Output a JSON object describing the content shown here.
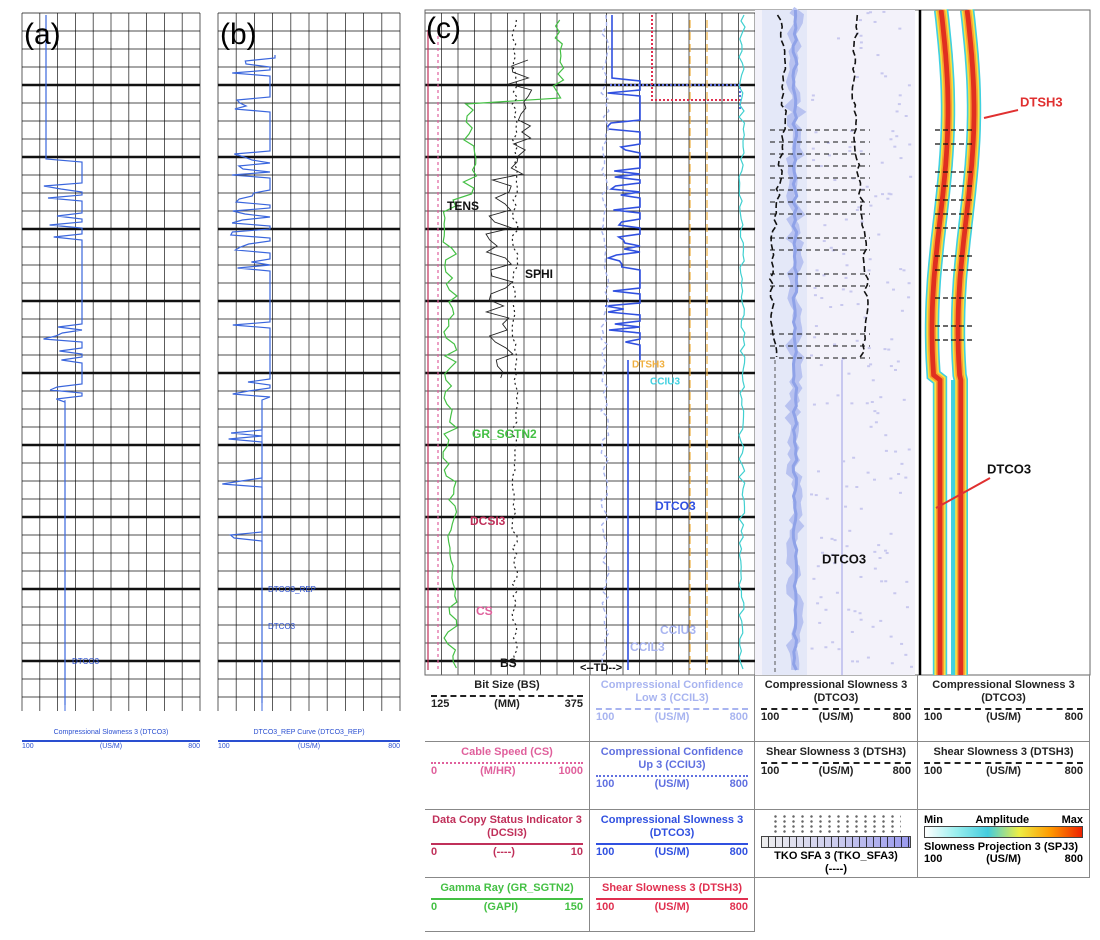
{
  "panels": [
    {
      "label": "(a)",
      "annotations": [
        "DTCO3"
      ],
      "footer": {
        "title": "Compressional Slowness 3 (DTCO3)",
        "min": 100,
        "unit": "(US/M)",
        "max": 800
      }
    },
    {
      "label": "(b)",
      "annotations": [
        "DTCO3_REP",
        "DTCO3"
      ],
      "footer": {
        "title": "DTCO3_REP Curve (DTCO3_REP)",
        "min": 100,
        "unit": "(US/M)",
        "max": 800
      }
    },
    {
      "label": "(c)",
      "annotations": [
        "TENS",
        "SPHI",
        "GR_SGTN2",
        "DCSI3",
        "CS",
        "BS",
        "<--TD-->",
        "DTSH3",
        "CCIU3",
        "DTCO3",
        "CCIU3",
        "CCIL3",
        "DTCO3",
        "DTSH3",
        "DTCO3"
      ],
      "legend": [
        [
          {
            "title": "Bit Size (BS)",
            "min": 125,
            "unit": "(MM)",
            "max": 375,
            "color": "#222222",
            "style": "dashed"
          },
          {
            "title": "Cable Speed (CS)",
            "min": 0,
            "unit": "(M/HR)",
            "max": 1000,
            "color": "#e0609c",
            "style": "dotted"
          },
          {
            "title": "Data Copy Status Indicator 3 (DCSI3)",
            "min": 0,
            "unit": "(----)",
            "max": 10,
            "color": "#c0305a",
            "style": "solid"
          },
          {
            "title": "Gamma Ray (GR_SGTN2)",
            "min": 0,
            "unit": "(GAPI)",
            "max": 150,
            "color": "#44c044",
            "style": "solid"
          }
        ],
        [
          {
            "title": "Compressional Confidence Low 3 (CCIL3)",
            "min": 100,
            "unit": "(US/M)",
            "max": 800,
            "color": "#a8b4f0",
            "style": "dashed"
          },
          {
            "title": "Compressional Confidence Up 3 (CCIU3)",
            "min": 100,
            "unit": "(US/M)",
            "max": 800,
            "color": "#6070e0",
            "style": "dotted"
          },
          {
            "title": "Compressional Slowness 3 (DTCO3)",
            "min": 100,
            "unit": "(US/M)",
            "max": 800,
            "color": "#3050e0",
            "style": "solid"
          },
          {
            "title": "Shear Slowness 3 (DTSH3)",
            "min": 100,
            "unit": "(US/M)",
            "max": 800,
            "color": "#e03050",
            "style": "solid"
          }
        ],
        [
          {
            "title": "Compressional Slowness 3 (DTCO3)",
            "min": 100,
            "unit": "(US/M)",
            "max": 800,
            "color": "#222222",
            "style": "dashed"
          },
          {
            "title": "Shear Slowness 3 (DTSH3)",
            "min": 100,
            "unit": "(US/M)",
            "max": 800,
            "color": "#222222",
            "style": "dashed"
          },
          {
            "title": "TKO SFA 3 (TKO_SFA3)",
            "unit": "(----)"
          }
        ],
        [
          {
            "title": "Compressional Slowness 3 (DTCO3)",
            "min": 100,
            "unit": "(US/M)",
            "max": 800,
            "color": "#222222",
            "style": "dashed"
          },
          {
            "title": "Shear Slowness 3 (DTSH3)",
            "min": 100,
            "unit": "(US/M)",
            "max": 800,
            "color": "#222222",
            "style": "dashed"
          },
          {
            "scale": [
              "Min",
              "Amplitude",
              "Max"
            ],
            "title": "Slowness Projection 3 (SPJ3)",
            "min": 100,
            "unit": "(US/M)",
            "max": 800
          }
        ]
      ]
    }
  ]
}
